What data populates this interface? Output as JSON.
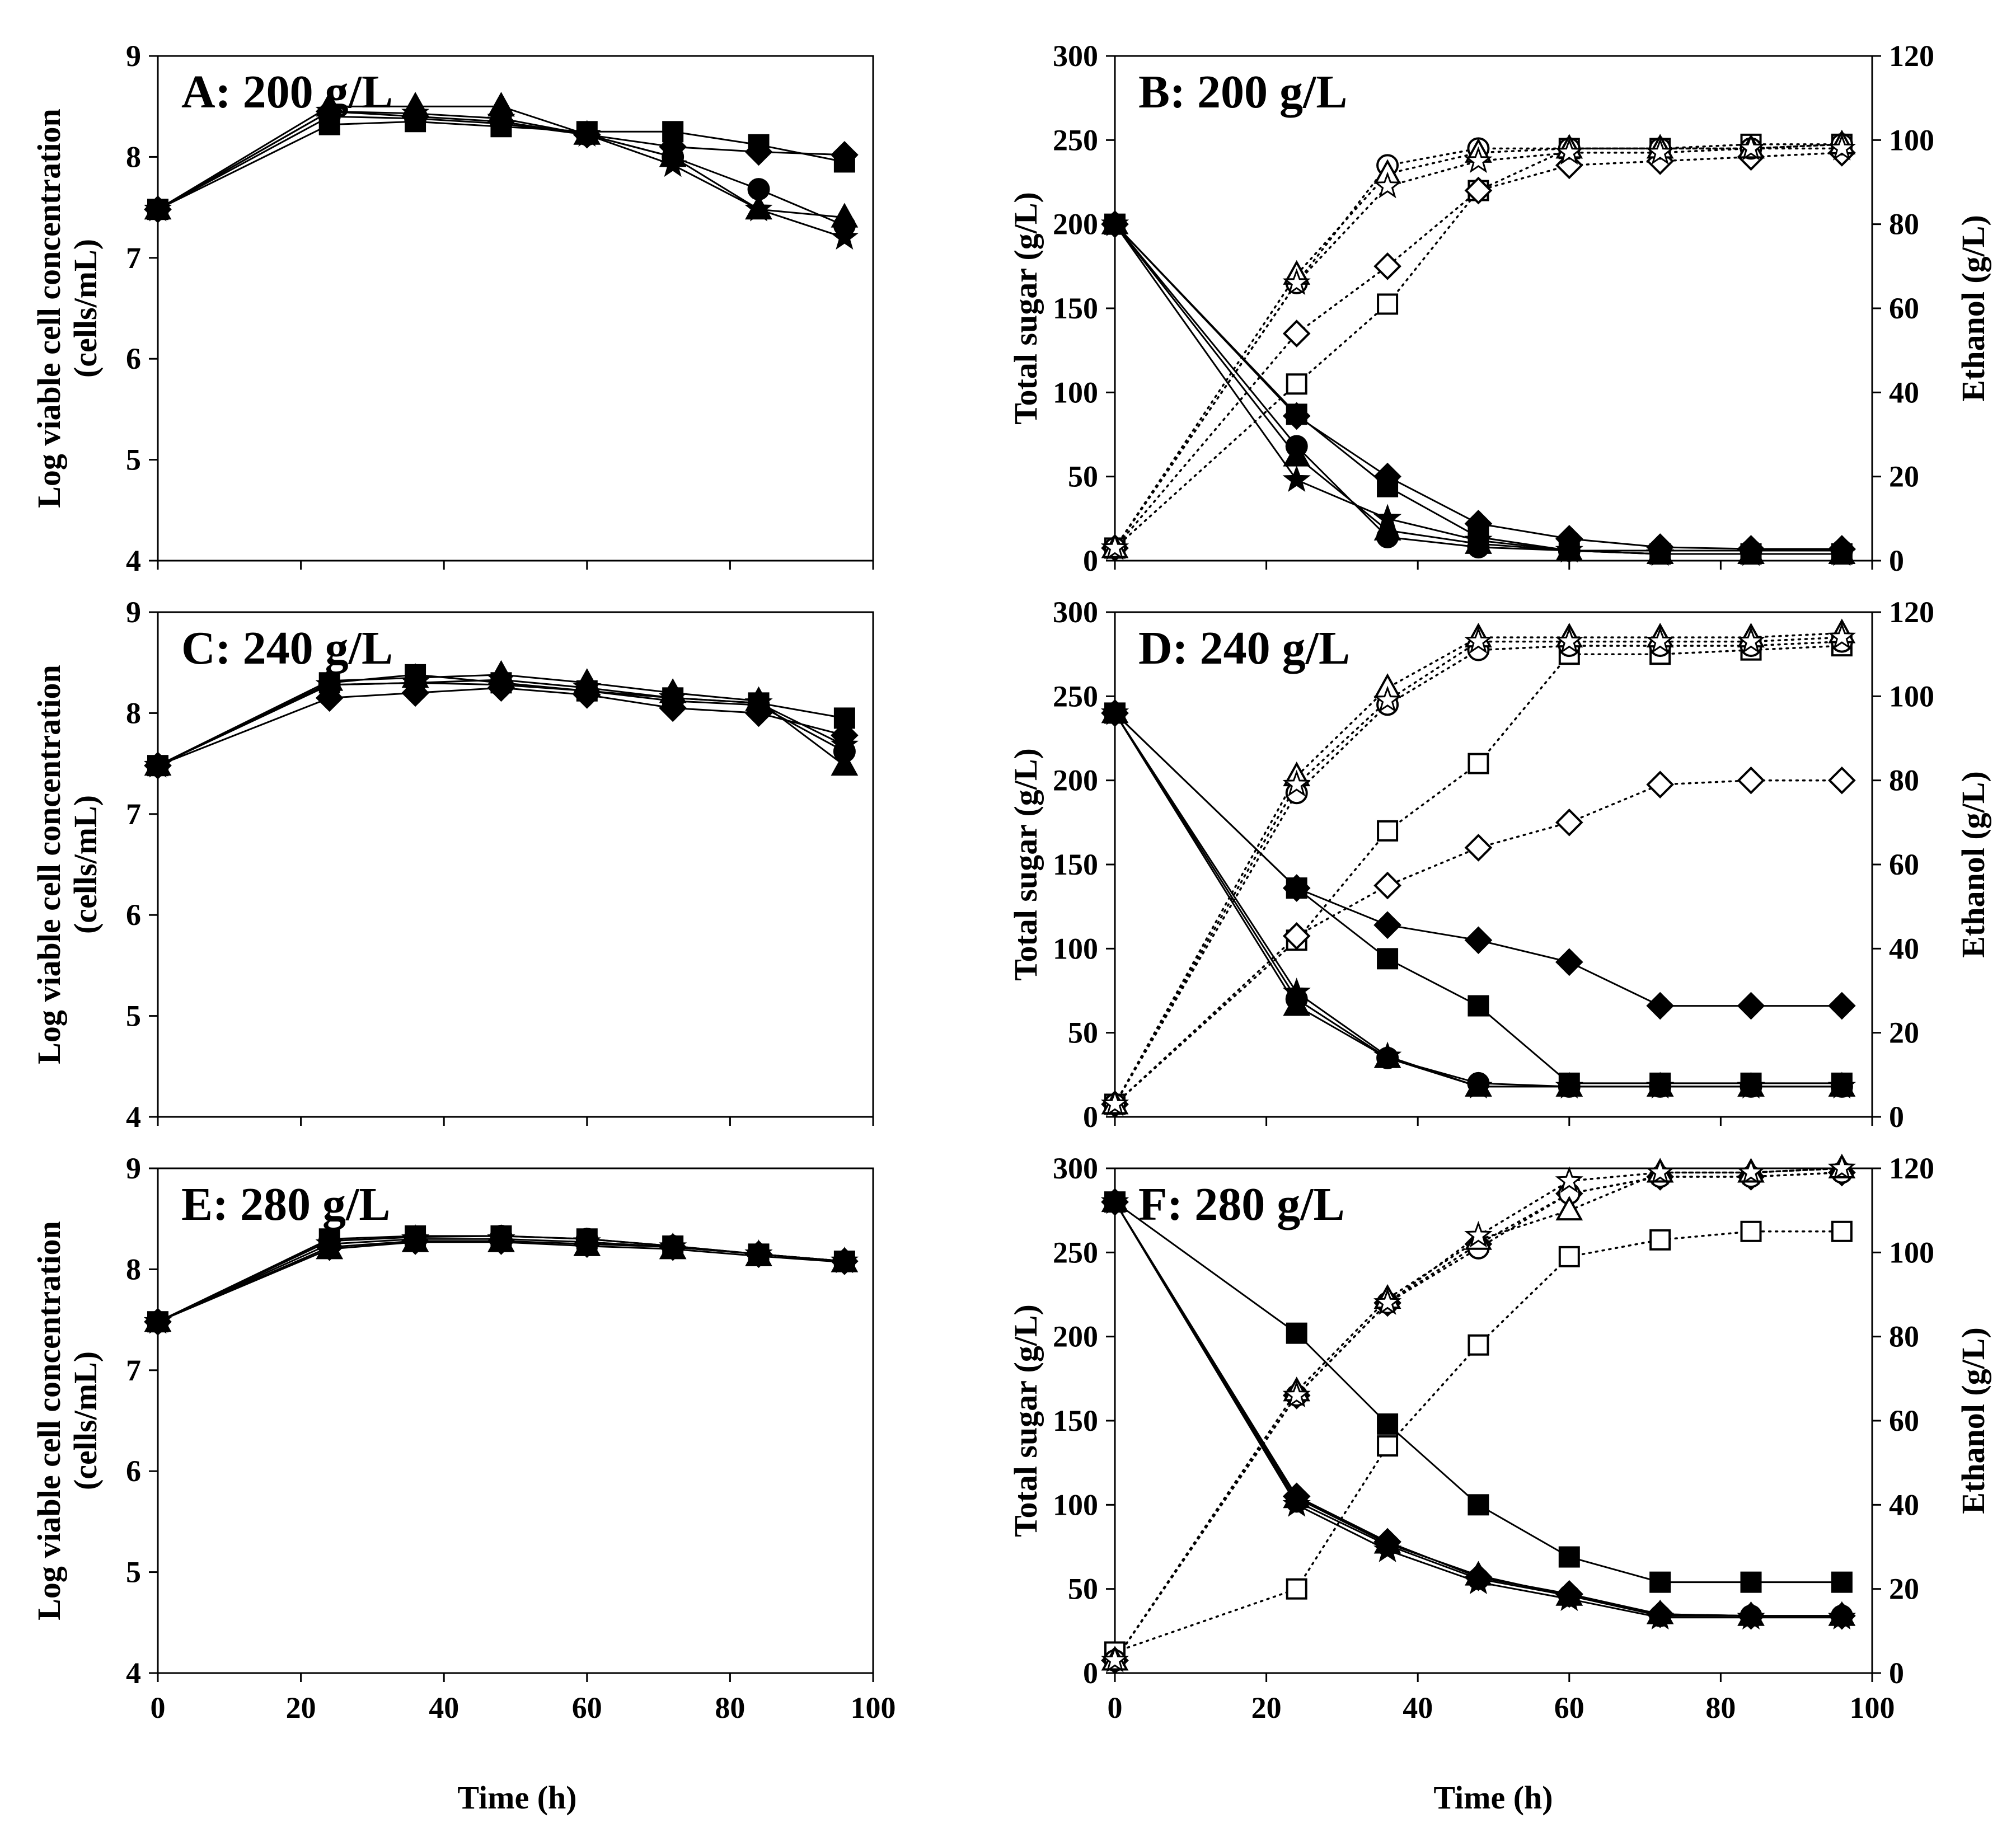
{
  "figure": {
    "x_axis_label": "Time (h)"
  },
  "chart_data": [
    {
      "id": "A",
      "type": "line",
      "title": "A: 200 g/L",
      "xlabel": "Time (h)",
      "ylabel_line1": "Log viable cell concentration",
      "ylabel_line2": "(cells/mL)",
      "xlim": [
        0,
        100
      ],
      "xticks": [
        0,
        20,
        40,
        60,
        80,
        100
      ],
      "ylim": [
        4,
        9
      ],
      "yticks": [
        4,
        5,
        6,
        7,
        8,
        9
      ],
      "x": [
        0,
        24,
        36,
        48,
        60,
        72,
        84,
        96
      ],
      "series": [
        {
          "name": "square",
          "marker": "square",
          "filled": true,
          "axis": "left",
          "values": [
            7.48,
            8.32,
            8.35,
            8.3,
            8.25,
            8.25,
            8.12,
            7.95
          ]
        },
        {
          "name": "diamond",
          "marker": "diamond",
          "filled": true,
          "axis": "left",
          "values": [
            7.48,
            8.45,
            8.4,
            8.35,
            8.22,
            8.1,
            8.05,
            8.02
          ]
        },
        {
          "name": "circle",
          "marker": "circle",
          "filled": true,
          "axis": "left",
          "values": [
            7.48,
            8.4,
            8.38,
            8.33,
            8.22,
            8.0,
            7.68,
            7.32
          ]
        },
        {
          "name": "triangle",
          "marker": "triangle",
          "filled": true,
          "axis": "left",
          "values": [
            7.48,
            8.5,
            8.5,
            8.5,
            8.22,
            8.0,
            7.48,
            7.4
          ]
        },
        {
          "name": "star",
          "marker": "star",
          "filled": true,
          "axis": "left",
          "values": [
            7.48,
            8.45,
            8.43,
            8.38,
            8.22,
            7.92,
            7.48,
            7.2
          ]
        }
      ]
    },
    {
      "id": "B",
      "type": "line",
      "title": "B: 200 g/L",
      "xlabel": "Time (h)",
      "ylabel": "Total sugar (g/L)",
      "y2label": "Ethanol (g/L)",
      "xlim": [
        0,
        100
      ],
      "xticks": [
        0,
        20,
        40,
        60,
        80,
        100
      ],
      "ylim": [
        0,
        300
      ],
      "yticks": [
        0,
        50,
        100,
        150,
        200,
        250,
        300
      ],
      "y2lim": [
        0,
        120
      ],
      "y2ticks": [
        0,
        20,
        40,
        60,
        80,
        100,
        120
      ],
      "x": [
        0,
        24,
        36,
        48,
        60,
        72,
        84,
        96
      ],
      "series": [
        {
          "name": "sugar-square",
          "marker": "square",
          "filled": true,
          "axis": "left",
          "values": [
            200,
            87,
            44,
            14,
            6,
            4,
            4,
            4
          ]
        },
        {
          "name": "sugar-diamond",
          "marker": "diamond",
          "filled": true,
          "axis": "left",
          "values": [
            200,
            86,
            50,
            22,
            13,
            8,
            7,
            7
          ]
        },
        {
          "name": "sugar-circle",
          "marker": "circle",
          "filled": true,
          "axis": "left",
          "values": [
            200,
            68,
            14,
            8,
            6,
            6,
            6,
            6
          ]
        },
        {
          "name": "sugar-triangle",
          "marker": "triangle",
          "filled": true,
          "axis": "left",
          "values": [
            200,
            62,
            18,
            10,
            6,
            4,
            4,
            4
          ]
        },
        {
          "name": "sugar-star",
          "marker": "star",
          "filled": true,
          "axis": "left",
          "values": [
            200,
            48,
            25,
            12,
            6,
            4,
            4,
            4
          ]
        },
        {
          "name": "ethanol-square",
          "marker": "square",
          "filled": false,
          "axis": "right",
          "values": [
            3,
            42,
            61,
            88,
            98,
            98,
            99,
            99
          ]
        },
        {
          "name": "ethanol-diamond",
          "marker": "diamond",
          "filled": false,
          "axis": "right",
          "values": [
            3,
            54,
            70,
            88,
            94,
            95,
            96,
            97
          ]
        },
        {
          "name": "ethanol-circle",
          "marker": "circle",
          "filled": false,
          "axis": "right",
          "values": [
            3,
            66,
            94,
            98,
            98,
            98,
            98,
            99
          ]
        },
        {
          "name": "ethanol-triangle",
          "marker": "triangle",
          "filled": false,
          "axis": "right",
          "values": [
            3,
            68,
            92,
            97,
            98,
            98,
            98,
            99
          ]
        },
        {
          "name": "ethanol-star",
          "marker": "star",
          "filled": false,
          "axis": "right",
          "values": [
            3,
            66,
            89,
            95,
            97,
            97,
            98,
            98
          ]
        }
      ]
    },
    {
      "id": "C",
      "type": "line",
      "title": "C: 240 g/L",
      "xlabel": "Time (h)",
      "ylabel_line1": "Log viable cell concentration",
      "ylabel_line2": "(cells/mL)",
      "xlim": [
        0,
        100
      ],
      "xticks": [
        0,
        20,
        40,
        60,
        80,
        100
      ],
      "ylim": [
        4,
        9
      ],
      "yticks": [
        4,
        5,
        6,
        7,
        8,
        9
      ],
      "x": [
        0,
        24,
        36,
        48,
        60,
        72,
        84,
        96
      ],
      "series": [
        {
          "name": "square",
          "marker": "square",
          "filled": true,
          "axis": "left",
          "values": [
            7.48,
            8.3,
            8.38,
            8.3,
            8.22,
            8.15,
            8.1,
            7.95
          ]
        },
        {
          "name": "diamond",
          "marker": "diamond",
          "filled": true,
          "axis": "left",
          "values": [
            7.48,
            8.15,
            8.2,
            8.25,
            8.18,
            8.05,
            8.0,
            7.78
          ]
        },
        {
          "name": "circle",
          "marker": "circle",
          "filled": true,
          "axis": "left",
          "values": [
            7.48,
            8.28,
            8.3,
            8.28,
            8.22,
            8.12,
            8.08,
            7.62
          ]
        },
        {
          "name": "triangle",
          "marker": "triangle",
          "filled": true,
          "axis": "left",
          "values": [
            7.48,
            8.32,
            8.35,
            8.38,
            8.3,
            8.2,
            8.12,
            7.48
          ]
        },
        {
          "name": "star",
          "marker": "star",
          "filled": true,
          "axis": "left",
          "values": [
            7.48,
            8.28,
            8.3,
            8.33,
            8.25,
            8.15,
            8.1,
            7.68
          ]
        }
      ]
    },
    {
      "id": "D",
      "type": "line",
      "title": "D: 240 g/L",
      "xlabel": "Time (h)",
      "ylabel": "Total sugar (g/L)",
      "y2label": "Ethanol (g/L)",
      "xlim": [
        0,
        100
      ],
      "xticks": [
        0,
        20,
        40,
        60,
        80,
        100
      ],
      "ylim": [
        0,
        300
      ],
      "yticks": [
        0,
        50,
        100,
        150,
        200,
        250,
        300
      ],
      "y2lim": [
        0,
        120
      ],
      "y2ticks": [
        0,
        20,
        40,
        60,
        80,
        100,
        120
      ],
      "x": [
        0,
        24,
        36,
        48,
        60,
        72,
        84,
        96
      ],
      "series": [
        {
          "name": "sugar-square",
          "marker": "square",
          "filled": true,
          "axis": "left",
          "values": [
            240,
            136,
            94,
            66,
            20,
            20,
            20,
            20
          ]
        },
        {
          "name": "sugar-diamond",
          "marker": "diamond",
          "filled": true,
          "axis": "left",
          "values": [
            240,
            136,
            114,
            105,
            92,
            66,
            66,
            66
          ]
        },
        {
          "name": "sugar-circle",
          "marker": "circle",
          "filled": true,
          "axis": "left",
          "values": [
            240,
            70,
            35,
            20,
            18,
            18,
            18,
            18
          ]
        },
        {
          "name": "sugar-triangle",
          "marker": "triangle",
          "filled": true,
          "axis": "left",
          "values": [
            240,
            66,
            35,
            18,
            18,
            18,
            18,
            18
          ]
        },
        {
          "name": "sugar-star",
          "marker": "star",
          "filled": true,
          "axis": "left",
          "values": [
            240,
            74,
            36,
            18,
            18,
            18,
            18,
            18
          ]
        },
        {
          "name": "ethanol-square",
          "marker": "square",
          "filled": false,
          "axis": "right",
          "values": [
            3,
            42,
            68,
            84,
            110,
            110,
            111,
            112
          ]
        },
        {
          "name": "ethanol-diamond",
          "marker": "diamond",
          "filled": false,
          "axis": "right",
          "values": [
            3,
            43,
            55,
            64,
            70,
            79,
            80,
            80
          ]
        },
        {
          "name": "ethanol-circle",
          "marker": "circle",
          "filled": false,
          "axis": "right",
          "values": [
            3,
            77,
            98,
            111,
            112,
            112,
            112,
            113
          ]
        },
        {
          "name": "ethanol-triangle",
          "marker": "triangle",
          "filled": false,
          "axis": "right",
          "values": [
            3,
            81,
            102,
            114,
            114,
            114,
            114,
            115
          ]
        },
        {
          "name": "ethanol-star",
          "marker": "star",
          "filled": false,
          "axis": "right",
          "values": [
            3,
            79,
            99,
            113,
            113,
            113,
            113,
            114
          ]
        }
      ]
    },
    {
      "id": "E",
      "type": "line",
      "title": "E: 280 g/L",
      "xlabel": "Time (h)",
      "ylabel_line1": "Log viable cell concentration",
      "ylabel_line2": "(cells/mL)",
      "xlim": [
        0,
        100
      ],
      "xticks": [
        0,
        20,
        40,
        60,
        80,
        100
      ],
      "ylim": [
        4,
        9
      ],
      "yticks": [
        4,
        5,
        6,
        7,
        8,
        9
      ],
      "x": [
        0,
        24,
        36,
        48,
        60,
        72,
        84,
        96
      ],
      "series": [
        {
          "name": "square",
          "marker": "square",
          "filled": true,
          "axis": "left",
          "values": [
            7.48,
            8.3,
            8.33,
            8.33,
            8.3,
            8.23,
            8.15,
            8.08
          ]
        },
        {
          "name": "diamond",
          "marker": "diamond",
          "filled": true,
          "axis": "left",
          "values": [
            7.48,
            8.22,
            8.28,
            8.28,
            8.25,
            8.22,
            8.15,
            8.08
          ]
        },
        {
          "name": "circle",
          "marker": "circle",
          "filled": true,
          "axis": "left",
          "values": [
            7.48,
            8.28,
            8.32,
            8.33,
            8.3,
            8.23,
            8.15,
            8.08
          ]
        },
        {
          "name": "triangle",
          "marker": "triangle",
          "filled": true,
          "axis": "left",
          "values": [
            7.48,
            8.2,
            8.27,
            8.27,
            8.23,
            8.2,
            8.13,
            8.07
          ]
        },
        {
          "name": "star",
          "marker": "star",
          "filled": true,
          "axis": "left",
          "values": [
            7.48,
            8.25,
            8.3,
            8.3,
            8.27,
            8.22,
            8.15,
            8.08
          ]
        }
      ]
    },
    {
      "id": "F",
      "type": "line",
      "title": "F: 280 g/L",
      "xlabel": "Time (h)",
      "ylabel": "Total sugar (g/L)",
      "y2label": "Ethanol (g/L)",
      "xlim": [
        0,
        100
      ],
      "xticks": [
        0,
        20,
        40,
        60,
        80,
        100
      ],
      "ylim": [
        0,
        300
      ],
      "yticks": [
        0,
        50,
        100,
        150,
        200,
        250,
        300
      ],
      "y2lim": [
        0,
        120
      ],
      "y2ticks": [
        0,
        20,
        40,
        60,
        80,
        100,
        120
      ],
      "x": [
        0,
        24,
        36,
        48,
        60,
        72,
        84,
        96
      ],
      "series": [
        {
          "name": "sugar-square",
          "marker": "square",
          "filled": true,
          "axis": "left",
          "values": [
            280,
            202,
            148,
            100,
            69,
            54,
            54,
            54
          ]
        },
        {
          "name": "sugar-diamond",
          "marker": "diamond",
          "filled": true,
          "axis": "left",
          "values": [
            280,
            105,
            78,
            57,
            47,
            35,
            34,
            34
          ]
        },
        {
          "name": "sugar-circle",
          "marker": "circle",
          "filled": true,
          "axis": "left",
          "values": [
            280,
            102,
            76,
            56,
            46,
            34,
            34,
            34
          ]
        },
        {
          "name": "sugar-triangle",
          "marker": "triangle",
          "filled": true,
          "axis": "left",
          "values": [
            280,
            104,
            77,
            58,
            46,
            35,
            34,
            34
          ]
        },
        {
          "name": "sugar-star",
          "marker": "star",
          "filled": true,
          "axis": "left",
          "values": [
            280,
            100,
            73,
            54,
            44,
            33,
            33,
            33
          ]
        },
        {
          "name": "ethanol-square",
          "marker": "square",
          "filled": false,
          "axis": "right",
          "values": [
            5,
            20,
            54,
            78,
            99,
            103,
            105,
            105
          ]
        },
        {
          "name": "ethanol-diamond",
          "marker": "diamond",
          "filled": false,
          "axis": "right",
          "values": [
            3,
            66,
            88,
            102,
            114,
            118,
            118,
            119
          ]
        },
        {
          "name": "ethanol-circle",
          "marker": "circle",
          "filled": false,
          "axis": "right",
          "values": [
            3,
            66,
            88,
            101,
            114,
            118,
            118,
            119
          ]
        },
        {
          "name": "ethanol-triangle",
          "marker": "triangle",
          "filled": false,
          "axis": "right",
          "values": [
            3,
            67,
            89,
            103,
            110,
            119,
            119,
            120
          ]
        },
        {
          "name": "ethanol-star",
          "marker": "star",
          "filled": false,
          "axis": "right",
          "values": [
            3,
            66,
            88,
            104,
            117,
            119,
            119,
            120
          ]
        }
      ]
    }
  ]
}
